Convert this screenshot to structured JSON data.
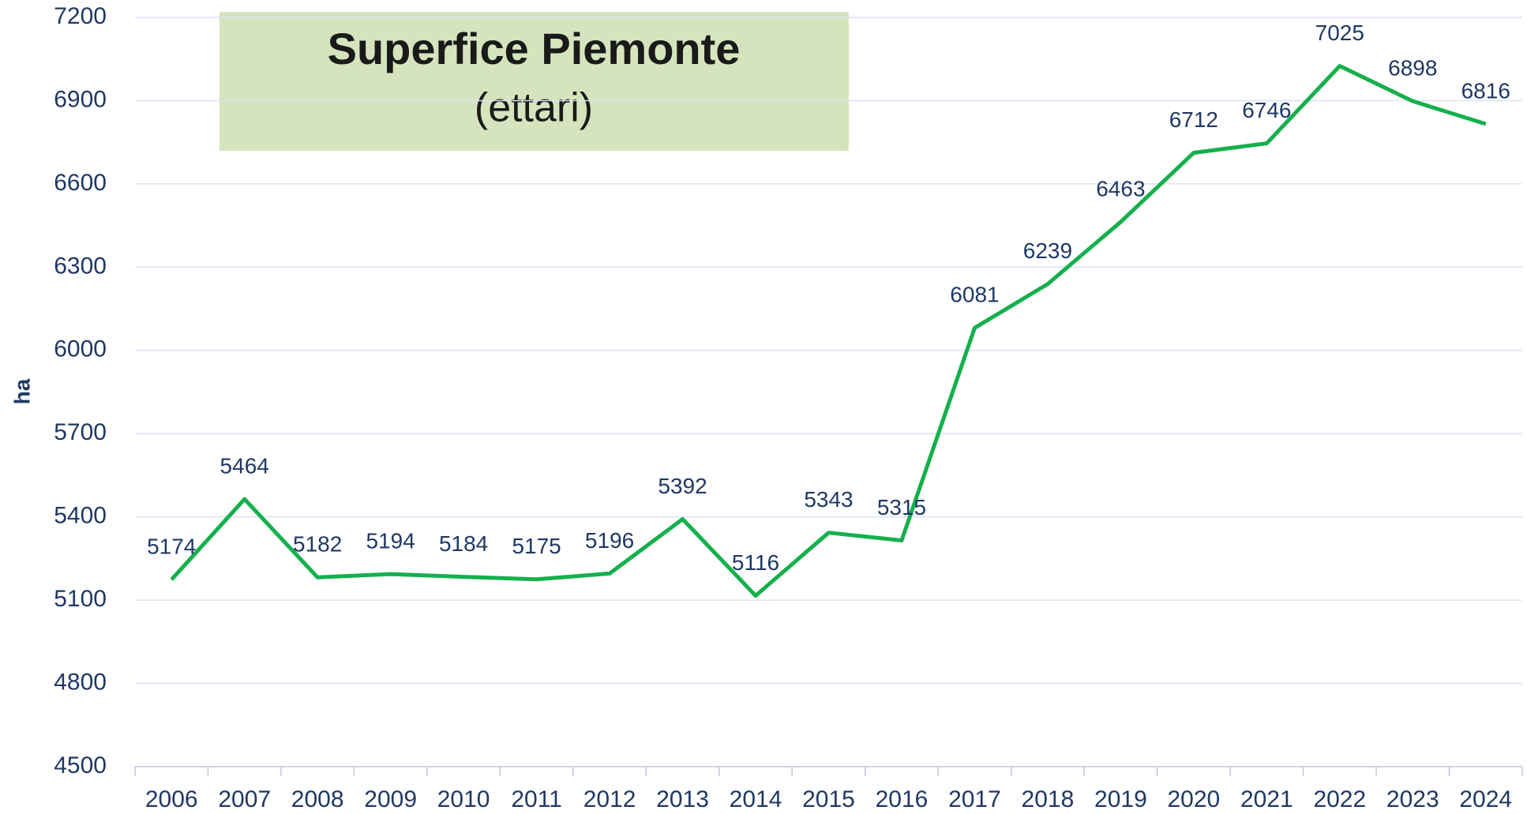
{
  "chart_data": {
    "type": "line",
    "title": "Superfice Piemonte",
    "subtitle": "(ettari)",
    "y_label": "ha",
    "categories": [
      "2006",
      "2007",
      "2008",
      "2009",
      "2010",
      "2011",
      "2012",
      "2013",
      "2014",
      "2015",
      "2016",
      "2017",
      "2018",
      "2019",
      "2020",
      "2021",
      "2022",
      "2023",
      "2024"
    ],
    "series": [
      {
        "name": "Superfice Piemonte",
        "color": "#14b04c",
        "values": [
          5174,
          5464,
          5182,
          5194,
          5184,
          5175,
          5196,
          5392,
          5116,
          5343,
          5315,
          6081,
          6239,
          6463,
          6712,
          6746,
          7025,
          6898,
          6816
        ]
      }
    ],
    "ylim": [
      4500,
      7200
    ],
    "yticks": [
      4500,
      4800,
      5100,
      5400,
      5700,
      6000,
      6300,
      6600,
      6900,
      7200
    ],
    "grid": true,
    "data_labels": true
  }
}
